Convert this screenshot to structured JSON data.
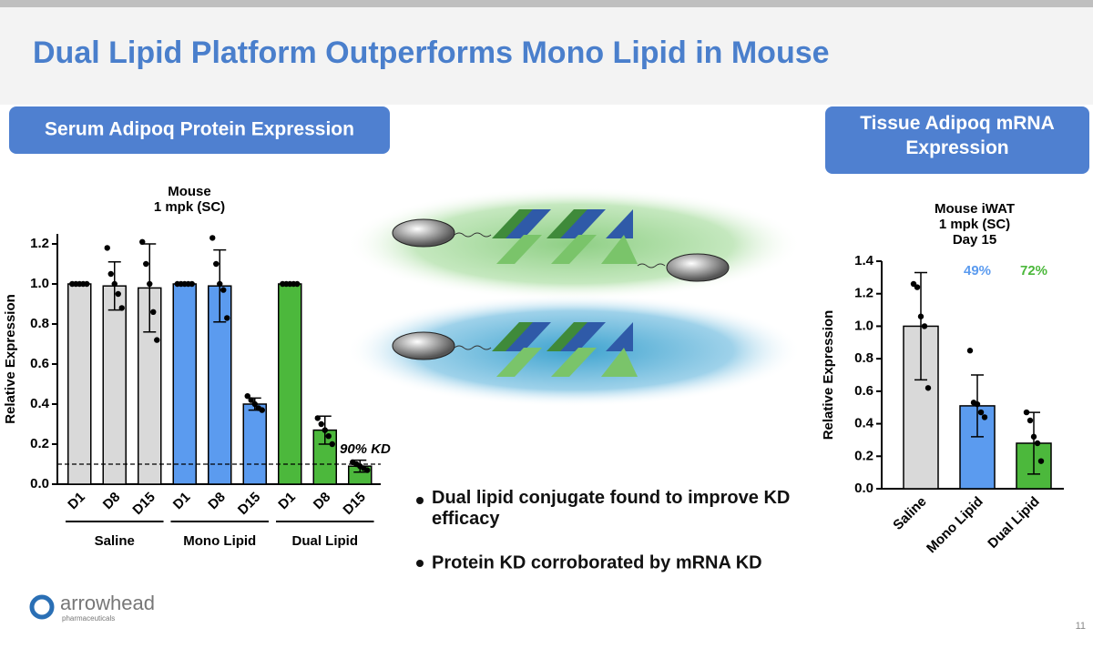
{
  "title": "Dual Lipid Platform Outperforms Mono Lipid in Mouse",
  "panels": [
    "Serum Adipoq Protein Expression",
    "Tissue Adipoq mRNA Expression"
  ],
  "bullets": [
    "Dual lipid conjugate found to improve KD efficacy",
    "Protein KD corroborated by mRNA KD"
  ],
  "logo": {
    "name": "arrowhead",
    "tagline": "pharmaceuticals"
  },
  "page_number": "11",
  "chart_data": [
    {
      "type": "bar",
      "title_lines": [
        "Mouse",
        "1 mpk (SC)"
      ],
      "y_label": "Relative Expression",
      "categories": [
        "D1",
        "D8",
        "D15",
        "D1",
        "D8",
        "D15",
        "D1",
        "D8",
        "D15"
      ],
      "groups": [
        "Saline",
        "Mono Lipid",
        "Dual Lipid"
      ],
      "values": [
        1.0,
        0.99,
        0.98,
        1.0,
        0.99,
        0.4,
        1.0,
        0.27,
        0.09
      ],
      "errors": [
        0,
        0.12,
        0.22,
        0,
        0.18,
        0.03,
        0,
        0.07,
        0.03
      ],
      "points": [
        [
          1,
          1,
          1,
          1,
          1
        ],
        [
          1.18,
          1.05,
          1.0,
          0.95,
          0.88
        ],
        [
          1.21,
          1.1,
          1.0,
          0.86,
          0.72
        ],
        [
          1,
          1,
          1,
          1,
          1
        ],
        [
          1.23,
          1.1,
          1.0,
          0.97,
          0.83
        ],
        [
          0.44,
          0.42,
          0.4,
          0.38,
          0.37
        ],
        [
          1,
          1,
          1,
          1,
          1
        ],
        [
          0.33,
          0.3,
          0.27,
          0.24,
          0.2
        ],
        [
          0.11,
          0.1,
          0.09,
          0.08,
          0.07
        ]
      ],
      "colors": [
        "#d9d9d9",
        "#d9d9d9",
        "#d9d9d9",
        "#5b9bef",
        "#5b9bef",
        "#5b9bef",
        "#4cb83c",
        "#4cb83c",
        "#4cb83c"
      ],
      "reference_line": 0.1,
      "reference_label": "90% KD",
      "ylim": [
        0,
        1.25
      ],
      "yticks": [
        {
          "value": 0,
          "label": "0.0"
        },
        0.2,
        0.4,
        0.6,
        0.8,
        {
          "value": 1,
          "label": "1.0"
        },
        1.2
      ]
    },
    {
      "type": "bar",
      "title_lines": [
        "Mouse iWAT",
        "1 mpk (SC)",
        "Day 15"
      ],
      "y_label": "Relative Expression",
      "categories": [
        "Saline",
        "Mono Lipid",
        "Dual Lipid"
      ],
      "values": [
        1.0,
        0.51,
        0.28
      ],
      "errors": [
        0.33,
        0.19,
        0.19
      ],
      "points": [
        [
          1.26,
          1.24,
          1.06,
          1.0,
          0.62
        ],
        [
          0.85,
          0.53,
          0.52,
          0.47,
          0.44
        ],
        [
          0.47,
          0.42,
          0.32,
          0.28,
          0.17
        ]
      ],
      "colors": [
        "#d9d9d9",
        "#5b9bef",
        "#4cb83c"
      ],
      "value_labels": [
        null,
        "49%",
        "72%"
      ],
      "value_label_colors": [
        null,
        "#5b9bef",
        "#4cb83c"
      ],
      "ylim": [
        0,
        1.4
      ],
      "yticks": [
        {
          "value": 0,
          "label": "0.0"
        },
        0.2,
        0.4,
        0.6,
        0.8,
        {
          "value": 1,
          "label": "1.0"
        },
        1.2,
        1.4
      ]
    }
  ]
}
